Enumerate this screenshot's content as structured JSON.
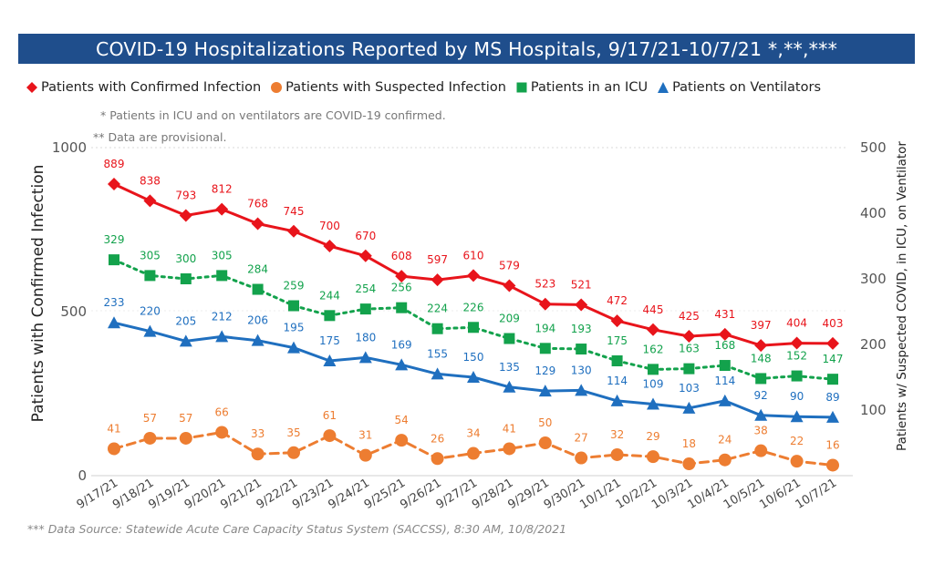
{
  "title": "COVID-19 Hospitalizations Reported by MS Hospitals, 9/17/21-10/7/21 *,**,***",
  "legend": {
    "confirmed": "Patients with Confirmed Infection",
    "suspected": "Patients with Suspected Infection",
    "icu": "Patients in an ICU",
    "ventilators": "Patients on Ventilators"
  },
  "notes": {
    "note1": "* Patients in ICU and on ventilators are COVID-19 confirmed.",
    "note2": "** Data are provisional."
  },
  "footnote": "*** Data Source: Statewide Acute Care Capacity Status System (SACCSS), 8:30 AM, 10/8/2021",
  "colors": {
    "title_bg": "#1f4e8c",
    "confirmed": "#e8141b",
    "suspected": "#ed7d31",
    "icu": "#13a24c",
    "ventilators": "#1f6fbf"
  },
  "chart_data": {
    "type": "line",
    "title": "COVID-19 Hospitalizations Reported by MS Hospitals, 9/17/21-10/7/21 *,**,***",
    "xlabel": "",
    "ylabel": "Patients with Confirmed Infection",
    "y2label": "Patients w/ Suspected COVID, in ICU, on Ventilator",
    "ylim": [
      0,
      1000
    ],
    "y2lim": [
      0,
      500
    ],
    "yticks": [
      "0",
      "500",
      "1000"
    ],
    "y2ticks": [
      "100",
      "200",
      "300",
      "400",
      "500"
    ],
    "grid": false,
    "legend_position": "top",
    "categories": [
      "9/17/21",
      "9/18/21",
      "9/19/21",
      "9/20/21",
      "9/21/21",
      "9/22/21",
      "9/23/21",
      "9/24/21",
      "9/25/21",
      "9/26/21",
      "9/27/21",
      "9/28/21",
      "9/29/21",
      "9/30/21",
      "10/1/21",
      "10/2/21",
      "10/3/21",
      "10/4/21",
      "10/5/21",
      "10/6/21",
      "10/7/21"
    ],
    "series": [
      {
        "name": "Patients with Confirmed Infection",
        "axis": "left",
        "values": [
          889,
          838,
          793,
          812,
          768,
          745,
          700,
          670,
          608,
          597,
          610,
          579,
          523,
          521,
          472,
          445,
          425,
          431,
          397,
          404,
          403
        ]
      },
      {
        "name": "Patients with Suspected Infection",
        "axis": "right",
        "values": [
          41,
          57,
          57,
          66,
          33,
          35,
          61,
          31,
          54,
          26,
          34,
          41,
          50,
          27,
          32,
          29,
          18,
          24,
          38,
          22,
          16
        ]
      },
      {
        "name": "Patients in an ICU",
        "axis": "right",
        "values": [
          329,
          305,
          300,
          305,
          284,
          259,
          244,
          254,
          256,
          224,
          226,
          209,
          194,
          193,
          175,
          162,
          163,
          168,
          148,
          152,
          147
        ]
      },
      {
        "name": "Patients on Ventilators",
        "axis": "right",
        "values": [
          233,
          220,
          205,
          212,
          206,
          195,
          175,
          180,
          169,
          155,
          150,
          135,
          129,
          130,
          114,
          109,
          103,
          114,
          92,
          90,
          89
        ]
      }
    ]
  }
}
